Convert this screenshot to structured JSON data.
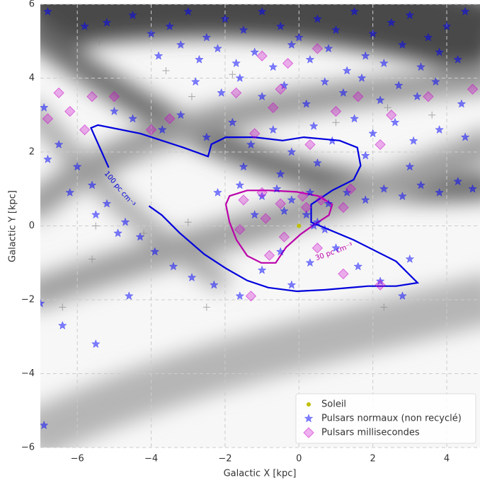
{
  "chart_data": {
    "type": "scatter",
    "x_label": "Galactic X [kpc]",
    "y_label": "Galactic Y [kpc]",
    "xlim": [
      -7,
      4.9
    ],
    "ylim": [
      -6,
      6
    ],
    "xticks": [
      {
        "value": -6,
        "label": "−6"
      },
      {
        "value": -4,
        "label": "−4"
      },
      {
        "value": -2,
        "label": "−2"
      },
      0,
      2,
      4
    ],
    "yticks": [
      {
        "value": -6,
        "label": "−6"
      },
      {
        "value": -4,
        "label": "−4"
      },
      {
        "value": -2,
        "label": "−2"
      },
      0,
      2,
      4,
      6
    ],
    "grid": true,
    "legend": "lower right",
    "series": [
      {
        "name": "Soleil",
        "color": "#bfbf00",
        "marker": "circle",
        "x": [
          0
        ],
        "y": [
          0
        ]
      },
      {
        "name": "Pulsars normaux (non recyclé)",
        "color": "#0000ff",
        "marker": "star",
        "x": [
          -6.8,
          -5.8,
          -5.2,
          -4.5,
          -4,
          -3.5,
          -3,
          -2.5,
          -2,
          -1.5,
          -1,
          -0.5,
          0,
          0.5,
          1,
          1.5,
          2,
          2.5,
          3,
          3.5,
          4,
          4.5,
          -3.8,
          -3.2,
          -2.7,
          -2.2,
          -1.7,
          -1.2,
          -0.7,
          -0.2,
          0.3,
          0.8,
          1.3,
          1.8,
          2.3,
          2.8,
          3.3,
          3.8,
          4.3,
          -2.8,
          -2.1,
          -1.6,
          -1.0,
          -0.4,
          0.2,
          0.7,
          1.2,
          1.7,
          2.2,
          2.7,
          3.2,
          3.7,
          4.4,
          -5,
          -4.5,
          -3.7,
          -3.2,
          -2.5,
          -1.8,
          -1.3,
          -0.7,
          -0.2,
          0.4,
          0.9,
          1.5,
          2.0,
          2.6,
          3.1,
          3.8,
          4.5,
          -1.5,
          -0.5,
          0.5,
          1.8,
          3,
          -2.2,
          -1.6,
          -1,
          -0.6,
          -0.2,
          0.3,
          0.8,
          1.3,
          1.8,
          2.3,
          2.8,
          3.3,
          3.8,
          4.3,
          4.7,
          0.5,
          0.7,
          0.4,
          0.2,
          -0.4,
          -1.2,
          -6.9,
          -6.5,
          -6,
          -5.6,
          -5.2,
          -4.7,
          -4.3,
          -3.9,
          -3.4,
          -2.9,
          -2.3,
          -1.6,
          -6.8,
          -6.2,
          -5.5,
          -4.9,
          -0.5,
          -1,
          0.3,
          1,
          1.6,
          2.2,
          2.8,
          -0.2,
          -7,
          -6.4,
          -5.5,
          -6.9,
          -4.6,
          3
        ],
        "y": [
          5.8,
          5.4,
          5.5,
          5.7,
          5.2,
          5.4,
          5.8,
          5.1,
          5.6,
          5.3,
          5.8,
          5.4,
          5.1,
          5.6,
          5.3,
          5.8,
          5.2,
          5.5,
          5.7,
          5.1,
          5.4,
          5.8,
          4.6,
          4.9,
          4.5,
          4.8,
          4.4,
          4.7,
          4.3,
          4.9,
          4.5,
          4.8,
          4.2,
          4.6,
          4.4,
          4.9,
          4.3,
          4.7,
          4.5,
          3.9,
          3.6,
          4.0,
          3.5,
          3.8,
          3.3,
          3.9,
          3.6,
          4.0,
          3.4,
          3.8,
          3.5,
          3.9,
          3.3,
          3.1,
          2.9,
          2.6,
          3.0,
          2.4,
          2.8,
          2.2,
          2.6,
          2.0,
          2.7,
          2.3,
          2.9,
          2.5,
          2.8,
          2.3,
          2.6,
          2.4,
          1.6,
          1.4,
          1.7,
          1.9,
          1.6,
          0.9,
          1.1,
          0.8,
          1.0,
          0.7,
          0.9,
          0.6,
          0.9,
          0.7,
          1.0,
          0.8,
          1.1,
          0.9,
          1.2,
          1.0,
          0.1,
          -0.1,
          0.0,
          0.3,
          0.4,
          0.3,
          3.2,
          2.2,
          1.6,
          1.1,
          0.6,
          0.1,
          -0.3,
          -0.7,
          -1.1,
          -1.4,
          -1.6,
          -1.9,
          1.8,
          0.9,
          0.3,
          -0.2,
          -0.7,
          -1.2,
          -1,
          -0.6,
          -1.1,
          -1.5,
          -1.9,
          -1.6,
          -2.1,
          -2.7,
          -3.2,
          -5.4,
          -1.9,
          -0.9
        ]
      },
      {
        "name": "Pulsars millisecondes",
        "color": "#cc00cc",
        "marker": "diamond",
        "x": [
          -6.5,
          -6.2,
          -5.6,
          -5.0,
          -6.8,
          -5.8,
          -4,
          -3.5,
          -1.7,
          -0.7,
          -0.5,
          -0.3,
          0.5,
          -1,
          1,
          1.6,
          2.5,
          3.5,
          4.7,
          -1.2,
          0.3,
          2.2,
          -1.5,
          -1,
          -0.5,
          0.1,
          0.6,
          1.2,
          -0.9,
          -0.4,
          -1.6,
          0.5,
          1.2,
          -1.3,
          2.2,
          -0.8,
          0.2,
          1.4
        ],
        "y": [
          3.6,
          3.1,
          3.5,
          3.5,
          2.9,
          2.6,
          2.6,
          2.9,
          3.6,
          3.2,
          3.7,
          4.4,
          4.8,
          4.6,
          3.1,
          3.5,
          3.0,
          3.5,
          3.7,
          2.5,
          2.2,
          2.2,
          0.7,
          0.9,
          0.6,
          0.8,
          0.7,
          0.5,
          0.2,
          -0.3,
          -0.1,
          -0.6,
          -1.3,
          -1.9,
          -1.6,
          -0.8,
          0.5,
          1.0
        ]
      },
      {
        "color": "#888888",
        "marker": "plus",
        "x": [
          -5.4,
          -3.6,
          -2.9,
          -1.8,
          2.4,
          3.6,
          -5.5,
          -4.2,
          -3.0,
          -2.5,
          -5.6,
          2.3,
          -3.8,
          -6.4,
          1.0
        ],
        "y": [
          5.0,
          4.2,
          3.5,
          4.1,
          3.2,
          3.0,
          0.0,
          -0.2,
          0.1,
          -2.2,
          -0.9,
          -2.2,
          3.0,
          -2.2,
          2.8
        ]
      }
    ],
    "contours": [
      {
        "label": "100 pc cm⁻³",
        "color": "#0000dd",
        "x": [
          -5.15,
          -5.63,
          -5.44,
          -4.29,
          -3.13,
          -2.46,
          -2.37,
          -1.98,
          -1.21,
          -0.44,
          0.13,
          1.1,
          1.58,
          1.67,
          1.48,
          0.9,
          0.33,
          0.33,
          1.48,
          2.63,
          3.21,
          2.63,
          1.87,
          0.71,
          -0.06,
          -0.83,
          -1.4,
          -1.98,
          -2.56,
          -3.23,
          -3.71,
          -4.06
        ],
        "y": [
          1.58,
          2.65,
          2.73,
          2.5,
          2.12,
          1.88,
          2.21,
          2.4,
          2.4,
          2.31,
          2.4,
          2.31,
          2.12,
          1.63,
          1.25,
          0.96,
          0.58,
          0.1,
          -0.38,
          -0.96,
          -1.54,
          -1.63,
          -1.63,
          -1.73,
          -1.77,
          -1.67,
          -1.48,
          -1.15,
          -0.77,
          -0.19,
          0.29,
          0.54
        ],
        "label_x": -4.85,
        "label_y": 1.0,
        "label_angle": 50
      },
      {
        "label": "30 pc cm⁻³",
        "color": "#bb00aa",
        "x": [
          -1.98,
          -1.88,
          -1.4,
          -0.83,
          -0.06,
          0.52,
          0.9,
          0.81,
          0.42,
          0.04,
          -0.35,
          -0.63,
          -1.02,
          -1.4,
          -1.69,
          -1.88,
          -1.98
        ],
        "y": [
          0.58,
          0.81,
          0.96,
          0.96,
          0.92,
          0.81,
          0.58,
          0.29,
          0.04,
          -0.23,
          -0.58,
          -1.0,
          -1.0,
          -0.81,
          -0.38,
          0.1,
          0.58
        ],
        "label_x": 0.95,
        "label_y": -0.7,
        "label_angle": -20
      }
    ]
  }
}
